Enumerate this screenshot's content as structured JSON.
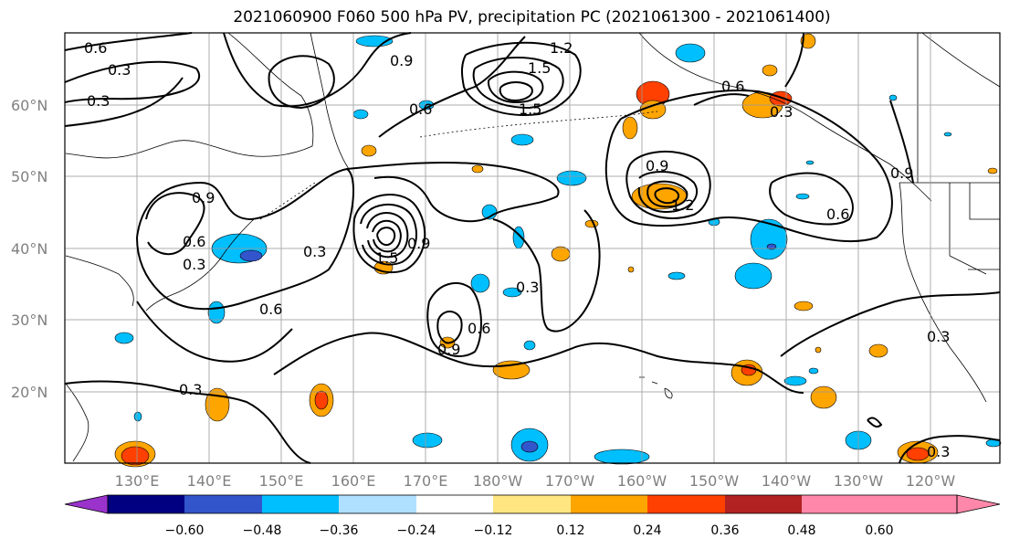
{
  "title": "2021060900 F060 500 hPa PV, precipitation PC (2021061300 - 2021061400)",
  "lat_labels": [
    "60°N",
    "50°N",
    "40°N",
    "30°N",
    "20°N"
  ],
  "lon_labels": [
    "130°E",
    "140°E",
    "150°E",
    "160°E",
    "170°E",
    "180°W",
    "170°W",
    "160°W",
    "150°W",
    "140°W",
    "130°W",
    "120°W"
  ],
  "colorbar": {
    "ticks": [
      "−0.60",
      "−0.48",
      "−0.36",
      "−0.24",
      "−0.12",
      "0.12",
      "0.24",
      "0.36",
      "0.48",
      "0.60"
    ],
    "colors": [
      "#9933cc",
      "#000080",
      "#3355cc",
      "#00bfff",
      "#b0e0ff",
      "#ffffff",
      "#ffe680",
      "#ffa500",
      "#ff4000",
      "#b22222",
      "#ff88aa",
      "#ff88aa"
    ]
  },
  "contour_labels": [
    "0.6",
    "0.3",
    "0.3",
    "0.9",
    "1.2",
    "1.5",
    "1.5",
    "0.6",
    "0.9",
    "0.6",
    "0.3",
    "0.3",
    "0.6",
    "1.5",
    "0.9",
    "0.3",
    "0.9",
    "1.2",
    "0.6",
    "0.3",
    "0.9",
    "0.6",
    "0.6",
    "0.9",
    "0.3",
    "0.3",
    "0.3"
  ]
}
